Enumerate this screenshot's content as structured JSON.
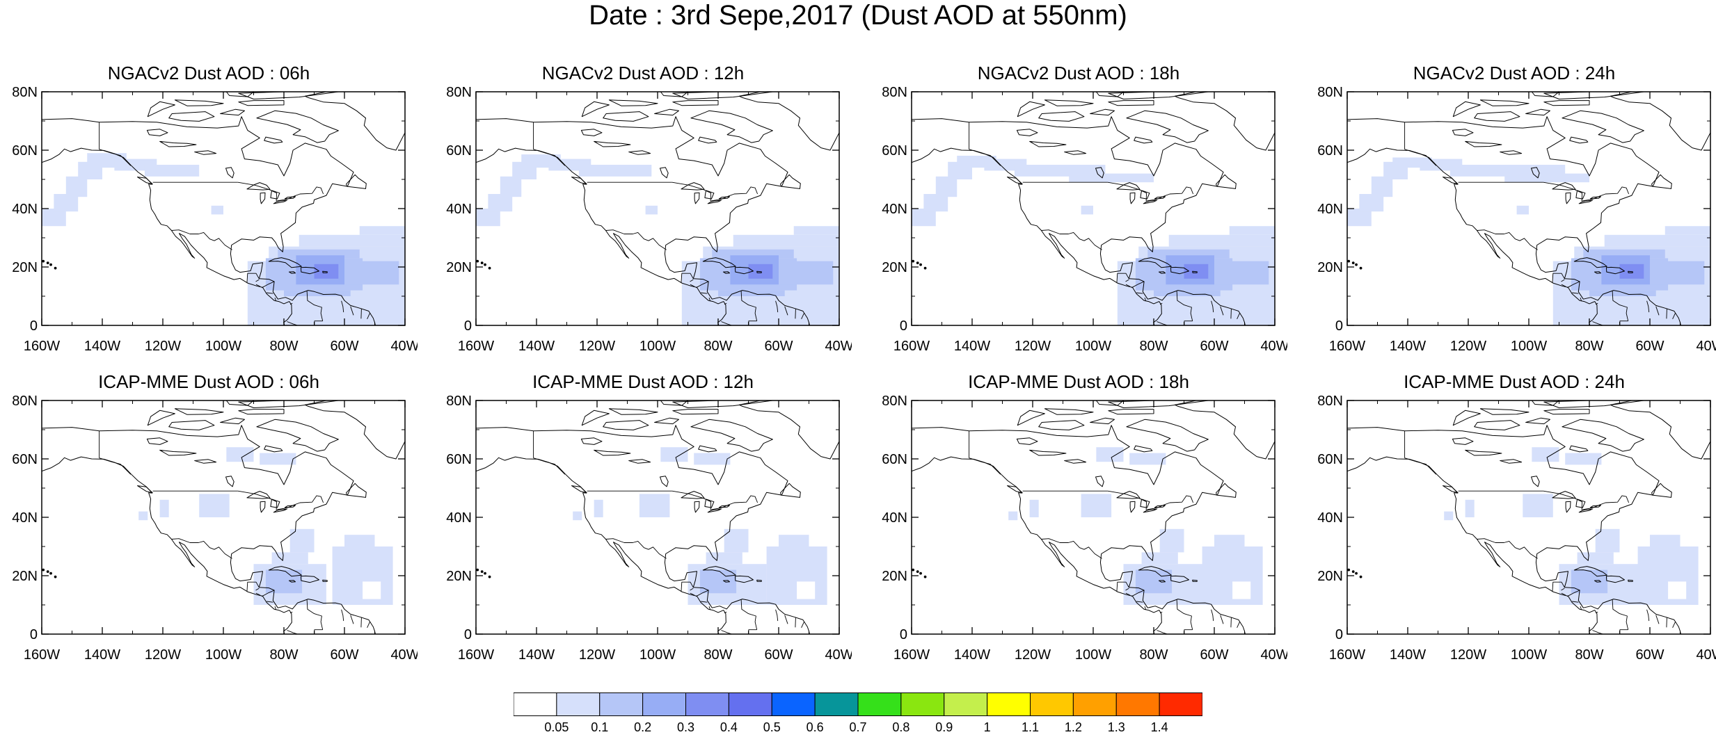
{
  "title": "Date : 3rd Sepe,2017 (Dust AOD at 550nm)",
  "map": {
    "lon_range": [
      -160,
      -40
    ],
    "lat_range": [
      0,
      80
    ],
    "x_ticks": [
      "160W",
      "140W",
      "120W",
      "100W",
      "80W",
      "60W",
      "40W"
    ],
    "y_ticks": [
      "0",
      "20N",
      "40N",
      "60N",
      "80N"
    ]
  },
  "panels": [
    {
      "title": "NGACv2 Dust AOD : 06h",
      "model": "NGACv2",
      "hour": "06h"
    },
    {
      "title": "NGACv2 Dust AOD : 12h",
      "model": "NGACv2",
      "hour": "12h"
    },
    {
      "title": "NGACv2 Dust AOD : 18h",
      "model": "NGACv2",
      "hour": "18h"
    },
    {
      "title": "NGACv2 Dust AOD : 24h",
      "model": "NGACv2",
      "hour": "24h"
    },
    {
      "title": "ICAP-MME Dust AOD : 06h",
      "model": "ICAP-MME",
      "hour": "06h"
    },
    {
      "title": "ICAP-MME Dust AOD : 12h",
      "model": "ICAP-MME",
      "hour": "12h"
    },
    {
      "title": "ICAP-MME Dust AOD : 18h",
      "model": "ICAP-MME",
      "hour": "18h"
    },
    {
      "title": "ICAP-MME Dust AOD : 24h",
      "model": "ICAP-MME",
      "hour": "24h"
    }
  ],
  "colorbar": {
    "labels": [
      "0.05",
      "0.1",
      "0.2",
      "0.3",
      "0.4",
      "0.5",
      "0.6",
      "0.7",
      "0.8",
      "0.9",
      "1",
      "1.1",
      "1.2",
      "1.3",
      "1.4"
    ],
    "colors": [
      "#ffffff",
      "#d6e0fb",
      "#b5c6f7",
      "#97adf5",
      "#7f8ef2",
      "#6470ef",
      "#0a64ff",
      "#07959a",
      "#35e01a",
      "#8ae610",
      "#c4ef4c",
      "#ffff00",
      "#ffc800",
      "#ffa000",
      "#ff7800",
      "#ff2a00"
    ]
  }
}
